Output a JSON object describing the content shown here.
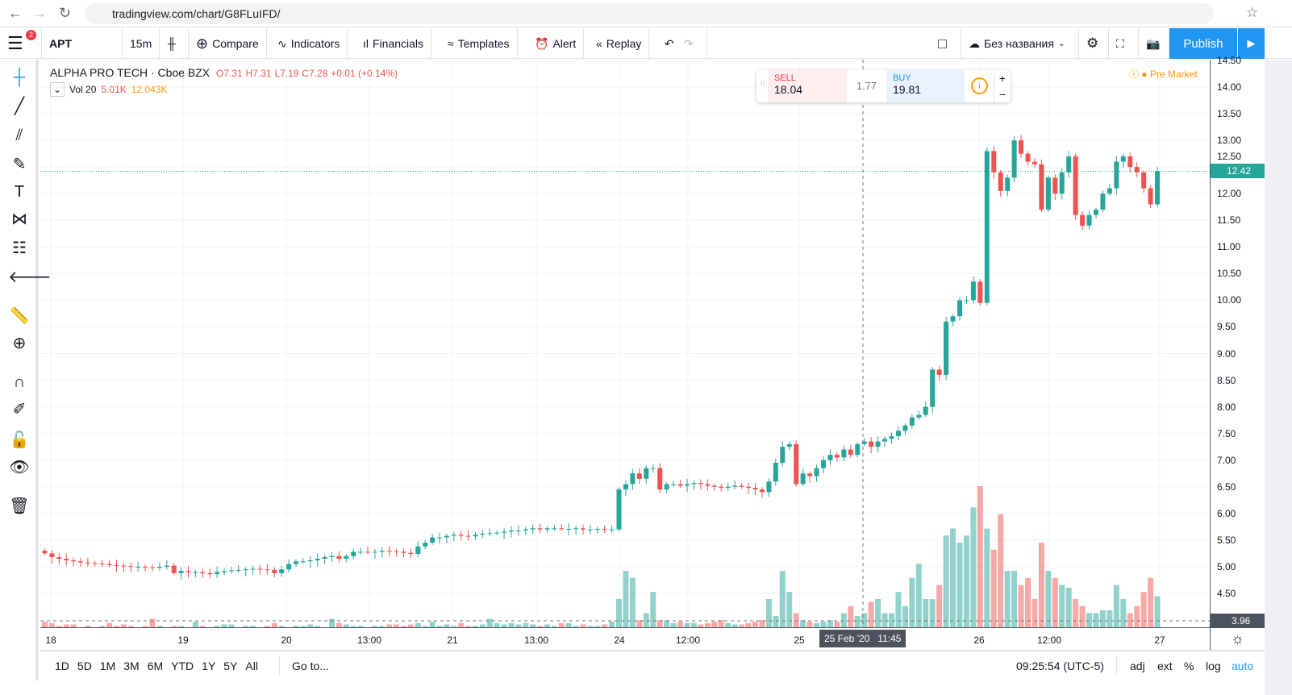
{
  "browser": {
    "url": "tradingview.com/chart/G8FLuIFD/"
  },
  "toolbar": {
    "notifications": "2",
    "symbol": "APT",
    "interval": "15m",
    "compare": "Compare",
    "indicators": "Indicators",
    "financials": "Financials",
    "templates": "Templates",
    "alert": "Alert",
    "replay": "Replay",
    "layout_name": "Без названия",
    "publish": "Publish"
  },
  "legend": {
    "name": "ALPHA PRO TECH · Cboe BZX",
    "open": "O7.31",
    "high": "H7.31",
    "low": "L7.19",
    "close": "C7.28",
    "change": "+0.01 (+0.14%)",
    "vol_label": "Vol 20",
    "vol1": "5.01K",
    "vol2": "12.043K"
  },
  "trade": {
    "sell_label": "SELL",
    "sell": "18.04",
    "spread": "1.77",
    "buy_label": "BUY",
    "buy": "19.81"
  },
  "market_status": "Pre Market",
  "price_axis": {
    "labels": [
      "14.50",
      "14.00",
      "13.50",
      "13.00",
      "12.50",
      "12.00",
      "11.50",
      "11.00",
      "10.50",
      "10.00",
      "9.50",
      "9.00",
      "8.50",
      "8.00",
      "7.50",
      "7.00",
      "6.50",
      "6.00",
      "5.50",
      "5.00",
      "4.50"
    ],
    "last_price": "12.42",
    "crosshair_price": "3.96"
  },
  "time_axis": {
    "labels": [
      "18",
      "19",
      "20",
      "13:00",
      "21",
      "13:00",
      "24",
      "12:00",
      "25",
      "26",
      "12:00",
      "27"
    ],
    "crosshair_time": "25 Feb '20   11:45"
  },
  "bottom": {
    "ranges": [
      "1D",
      "5D",
      "1M",
      "3M",
      "6M",
      "YTD",
      "1Y",
      "5Y",
      "All"
    ],
    "goto": "Go to...",
    "clock": "09:25:54 (UTC-5)",
    "adj": "adj",
    "ext": "ext",
    "pct": "%",
    "log": "log",
    "auto": "auto"
  },
  "colors": {
    "up": "#26a69a",
    "down": "#ef5350",
    "accent": "#2196f3"
  },
  "chart_data": {
    "type": "candlestick",
    "symbol": "APT",
    "interval": "15m",
    "closes_segment1": [
      5.25,
      5.18,
      5.15,
      5.12,
      5.1,
      5.08,
      5.07,
      5.06,
      5.05,
      5.03,
      5.02,
      5.01,
      5.0,
      5.0,
      4.99,
      4.98,
      5.0,
      5.02,
      4.88,
      4.92,
      4.9,
      4.9,
      4.88,
      4.86,
      4.9,
      4.92,
      4.93,
      4.94,
      4.95,
      4.96,
      4.95,
      4.94,
      4.88,
      4.95,
      5.05,
      5.1,
      5.1,
      5.12,
      5.15,
      5.18,
      5.2,
      5.15,
      5.2,
      5.28,
      5.28,
      5.27,
      5.28,
      5.3,
      5.29,
      5.28,
      5.26,
      5.24,
      5.38,
      5.45,
      5.55,
      5.55,
      5.58,
      5.6,
      5.58,
      5.57,
      5.6,
      5.62,
      5.63,
      5.64,
      5.66,
      5.68,
      5.68,
      5.7,
      5.72,
      5.7,
      5.72,
      5.72,
      5.71,
      5.71,
      5.72,
      5.7,
      5.7,
      5.71,
      5.7,
      5.7
    ],
    "volumes_segment1": [
      4,
      3,
      1,
      2,
      2,
      0,
      1,
      0,
      1,
      3,
      1,
      2,
      1,
      0,
      1,
      6,
      1,
      0,
      1,
      1,
      0,
      4,
      1,
      0,
      1,
      2,
      2,
      0,
      1,
      1,
      0,
      1,
      3,
      1,
      0,
      1,
      1,
      2,
      1,
      0,
      6,
      3,
      2,
      1,
      1,
      0,
      1,
      1,
      2,
      2,
      1,
      2,
      3,
      1,
      4,
      1,
      2,
      1,
      3,
      1,
      1,
      2,
      6,
      3,
      2,
      3,
      2,
      3,
      2,
      1,
      2,
      1,
      3,
      3,
      1,
      2,
      1,
      1,
      2,
      4
    ],
    "closes_segment2": [
      6.45,
      6.55,
      6.75,
      6.65,
      6.85,
      6.85,
      6.45,
      6.55,
      6.55,
      6.52,
      6.55,
      6.57,
      6.55,
      6.52,
      6.5,
      6.48,
      6.5,
      6.52,
      6.5,
      6.48,
      6.45,
      6.4,
      6.6,
      6.95,
      7.25,
      7.3,
      6.55,
      6.75,
      6.7,
      6.85,
      7.0,
      7.1,
      7.05,
      7.2,
      7.1,
      7.3,
      7.35,
      7.25,
      7.35,
      7.4,
      7.45,
      7.55,
      7.65,
      7.8,
      7.85,
      8.0,
      8.7,
      8.6,
      9.6,
      9.7,
      10.0,
      10.0,
      10.35,
      9.95,
      12.8,
      12.4,
      12.05,
      12.3,
      13.0,
      12.75,
      12.6,
      12.55,
      11.7,
      12.3,
      12.0,
      12.4,
      12.7,
      11.6,
      11.4,
      11.6,
      11.7,
      12.0,
      12.1,
      12.6,
      12.7,
      12.5,
      12.4,
      12.1,
      11.8,
      12.42
    ],
    "volumes_segment2": [
      20,
      40,
      35,
      5,
      10,
      25,
      5,
      5,
      3,
      4,
      3,
      3,
      2,
      3,
      4,
      5,
      3,
      2,
      2,
      3,
      4,
      5,
      20,
      8,
      40,
      25,
      10,
      5,
      4,
      3,
      4,
      5,
      4,
      10,
      15,
      8,
      10,
      18,
      20,
      10,
      10,
      25,
      15,
      35,
      45,
      20,
      20,
      30,
      65,
      70,
      60,
      65,
      85,
      100,
      70,
      55,
      80,
      40,
      40,
      30,
      35,
      20,
      60,
      40,
      35,
      30,
      28,
      20,
      15,
      10,
      10,
      12,
      12,
      30,
      20,
      10,
      15,
      25,
      35,
      22
    ],
    "ylim": [
      3.5,
      14.6
    ]
  }
}
